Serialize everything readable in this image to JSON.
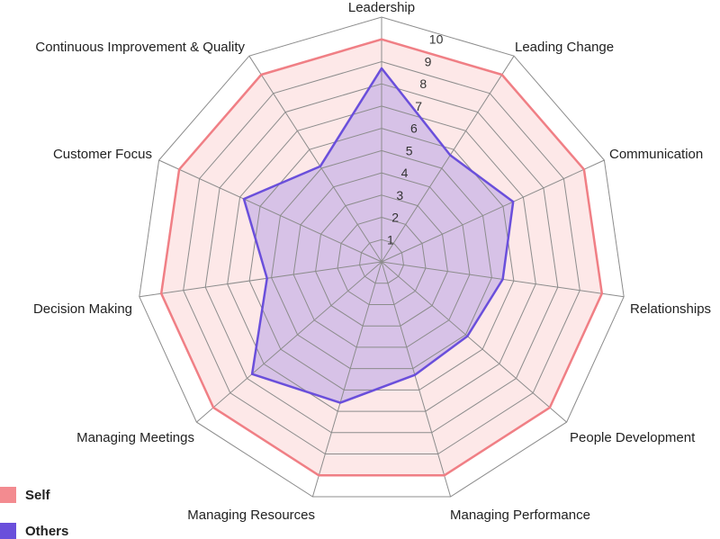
{
  "chart_data": {
    "type": "radar",
    "title": "",
    "axes": [
      "Leadership",
      "Leading Change",
      "Communication",
      "Relationships",
      "People Development",
      "Managing Performance",
      "Managing Resources",
      "Managing Meetings",
      "Decision Making",
      "Customer Focus",
      "Continuous Improvement & Quality"
    ],
    "ticks": [
      1,
      2,
      3,
      4,
      5,
      6,
      7,
      8,
      9,
      10
    ],
    "rlim": [
      0,
      11
    ],
    "grid": true,
    "legend_position": "bottom-left",
    "series": [
      {
        "name": "Self",
        "color": "#f07f85",
        "fill": "#fde4e4",
        "values": [
          10,
          10,
          10,
          10,
          10,
          10,
          10,
          10,
          10,
          10,
          10
        ]
      },
      {
        "name": "Others",
        "color": "#6a4fdb",
        "fill": "#cdb8e6",
        "values": [
          8.7,
          5.7,
          6.5,
          5.5,
          5.1,
          5.3,
          6.6,
          7.7,
          5.2,
          6.8,
          5.1
        ]
      }
    ]
  }
}
